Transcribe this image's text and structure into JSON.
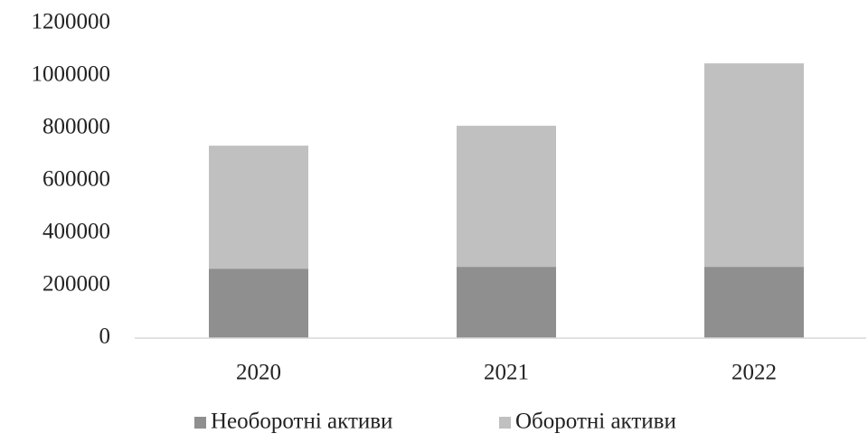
{
  "chart_data": {
    "type": "stacked_bar",
    "categories": [
      "2020",
      "2021",
      "2022"
    ],
    "series": [
      {
        "name": "Необоротні активи",
        "color": "#8f8f8f",
        "values": [
          265000,
          272000,
          272000
        ]
      },
      {
        "name": "Оборотні активи",
        "color": "#c0c0c0",
        "values": [
          469000,
          538000,
          776000
        ]
      }
    ],
    "ylim": [
      0,
      1200000
    ],
    "yticks": [
      0,
      200000,
      400000,
      600000,
      800000,
      1000000,
      1200000
    ],
    "grid": false,
    "legend": "bottom"
  }
}
